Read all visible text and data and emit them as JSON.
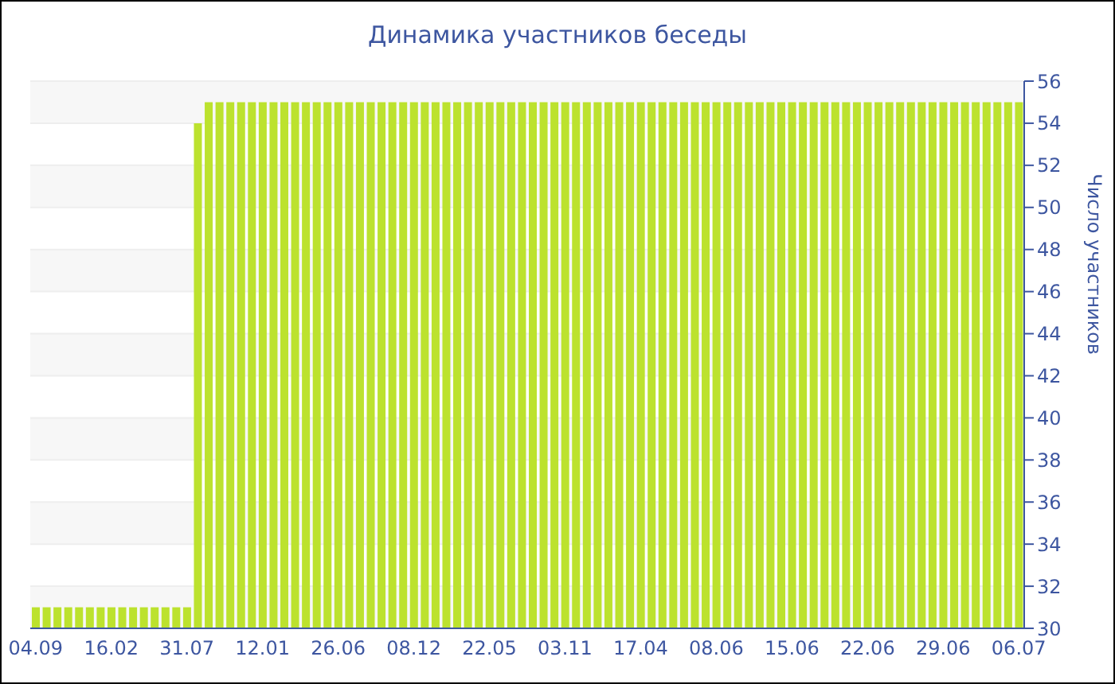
{
  "chart_data": {
    "type": "bar",
    "title": "Динамика участников беседы",
    "ylabel": "Число участников",
    "categories": [
      "04.09",
      null,
      null,
      null,
      null,
      null,
      null,
      "16.02",
      null,
      null,
      null,
      null,
      null,
      null,
      "31.07",
      null,
      null,
      null,
      null,
      null,
      null,
      "12.01",
      null,
      null,
      null,
      null,
      null,
      null,
      "26.06",
      null,
      null,
      null,
      null,
      null,
      null,
      "08.12",
      null,
      null,
      null,
      null,
      null,
      null,
      "22.05",
      null,
      null,
      null,
      null,
      null,
      null,
      "03.11",
      null,
      null,
      null,
      null,
      null,
      null,
      "17.04",
      null,
      null,
      null,
      null,
      null,
      null,
      "08.06",
      null,
      null,
      null,
      null,
      null,
      null,
      "15.06",
      null,
      null,
      null,
      null,
      null,
      null,
      "22.06",
      null,
      null,
      null,
      null,
      null,
      null,
      "29.06",
      null,
      null,
      null,
      null,
      null,
      null,
      "06.07"
    ],
    "series": [
      {
        "color": "#bce22e",
        "values": [
          31,
          31,
          31,
          31,
          31,
          31,
          31,
          31,
          31,
          31,
          31,
          31,
          31,
          31,
          31,
          54,
          55,
          55,
          55,
          55,
          55,
          55,
          55,
          55,
          55,
          55,
          55,
          55,
          55,
          55,
          55,
          55,
          55,
          55,
          55,
          55,
          55,
          55,
          55,
          55,
          55,
          55,
          55,
          55,
          55,
          55,
          55,
          55,
          55,
          55,
          55,
          55,
          55,
          55,
          55,
          55,
          55,
          55,
          55,
          55,
          55,
          55,
          55,
          55,
          55,
          55,
          55,
          55,
          55,
          55,
          55,
          55,
          55,
          55,
          55,
          55,
          55,
          55,
          55,
          55,
          55,
          55,
          55,
          55,
          55,
          55,
          55,
          55,
          55,
          55,
          55,
          55
        ]
      }
    ],
    "ylim": [
      30,
      56
    ],
    "yticks": [
      30,
      32,
      34,
      36,
      38,
      40,
      42,
      44,
      46,
      48,
      50,
      52,
      54,
      56
    ],
    "grid": "y"
  }
}
